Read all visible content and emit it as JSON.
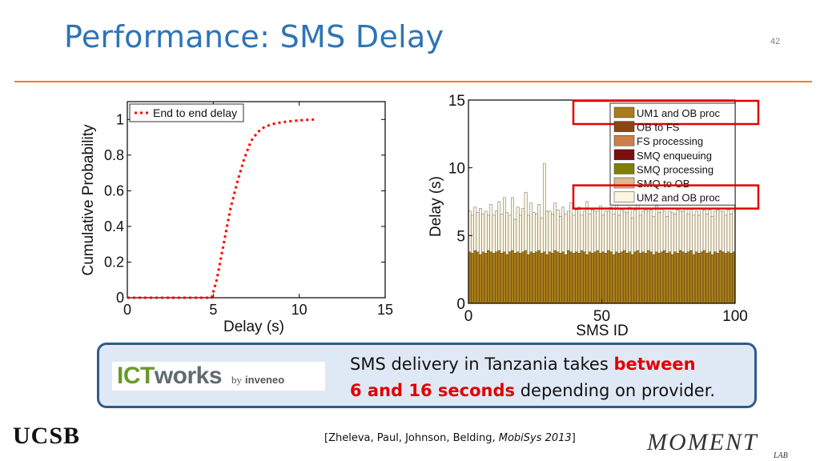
{
  "slide": {
    "title": "Performance: SMS Delay",
    "number": "42"
  },
  "callout": {
    "logo_text_a": "ICT",
    "logo_text_b": "works",
    "logo_by": "by",
    "logo_partner": "inveneo",
    "text_part1": "SMS delivery in Tanzania takes ",
    "text_highlight1": "between",
    "text_highlight2": "6 and 16 seconds",
    "text_part2": " depending on provider."
  },
  "footer": {
    "institution": "UCSB",
    "citation_prefix": "[Zheleva, Paul, Johnson, Belding, ",
    "citation_venue": "MobiSys 2013",
    "citation_suffix": "]",
    "lab_name": "MOMENT",
    "lab_sub": "LAB"
  },
  "colors": {
    "title": "#2e74b5",
    "rule": "#ed7d31",
    "highlight": "#e00000",
    "callout_border": "#2e5b8a",
    "callout_bg": "#dfe9f5",
    "legend_box": "#e00000"
  },
  "chart_data": [
    {
      "type": "line",
      "xlabel": "Delay (s)",
      "ylabel": "Cumulative Probability",
      "xlim": [
        0,
        15
      ],
      "ylim": [
        0,
        1.1
      ],
      "xticks": [
        "0",
        "5",
        "10",
        "15"
      ],
      "yticks": [
        "0",
        "0.2",
        "0.4",
        "0.6",
        "0.8",
        "1"
      ],
      "legend_position": "top-left",
      "series": [
        {
          "name": "End to end delay",
          "color": "#ff0000",
          "style": "dotted",
          "x": [
            0,
            4.9,
            5.2,
            5.6,
            6.0,
            6.4,
            6.8,
            7.2,
            7.6,
            8.0,
            8.5,
            9.0,
            9.5,
            10.0,
            10.5,
            10.9
          ],
          "y": [
            0,
            0,
            0.1,
            0.3,
            0.5,
            0.65,
            0.78,
            0.88,
            0.93,
            0.96,
            0.975,
            0.985,
            0.99,
            0.995,
            0.998,
            1.0
          ]
        }
      ]
    },
    {
      "type": "bar",
      "stacked": true,
      "xlabel": "SMS ID",
      "ylabel": "Delay (s)",
      "xlim": [
        0,
        100
      ],
      "ylim": [
        0,
        15
      ],
      "xticks": [
        "0",
        "50",
        "100"
      ],
      "yticks": [
        "0",
        "5",
        "10",
        "15"
      ],
      "legend_position": "top-right",
      "legend": [
        {
          "name": "UM1 and OB proc",
          "color": "#a87c1a",
          "highlighted": true
        },
        {
          "name": "OB to FS",
          "color": "#8b4513",
          "highlighted": false
        },
        {
          "name": "FS processing",
          "color": "#cd7f4a",
          "highlighted": false
        },
        {
          "name": "SMQ enqueuing",
          "color": "#7a0f0f",
          "highlighted": false
        },
        {
          "name": "SMQ processing",
          "color": "#808000",
          "highlighted": false
        },
        {
          "name": "SMQ to OB",
          "color": "#deb887",
          "highlighted": false
        },
        {
          "name": "UM2 and OB proc",
          "color": "#fdf5e0",
          "highlighted": true
        }
      ],
      "series": [
        {
          "name": "UM1 and OB proc",
          "values": [
            3.8,
            3.7,
            3.9,
            3.8,
            3.6,
            3.8,
            3.7,
            3.9,
            3.8,
            3.7,
            3.8,
            3.9,
            3.7,
            3.8,
            3.6,
            3.8,
            3.9,
            3.7,
            3.8,
            3.7,
            3.8,
            3.9,
            3.6,
            3.8,
            3.7,
            3.8,
            3.9,
            3.7,
            3.8,
            3.6,
            3.8,
            3.7,
            3.9,
            3.8,
            3.7,
            3.8,
            3.6,
            3.9,
            3.8,
            3.7,
            3.8,
            3.7,
            3.9,
            3.8,
            3.6,
            3.8,
            3.7,
            3.8,
            3.9,
            3.7,
            3.8,
            3.7,
            3.9,
            3.8,
            3.6,
            3.8,
            3.7,
            3.8,
            3.9,
            3.7,
            3.8,
            3.6,
            3.8,
            3.9,
            3.7,
            3.8,
            3.7,
            3.9,
            3.8,
            3.6,
            3.8,
            3.7,
            3.8,
            3.9,
            3.7,
            3.8,
            3.6,
            3.8,
            3.7,
            3.9,
            3.8,
            3.7,
            3.8,
            3.9,
            3.6,
            3.8,
            3.7,
            3.8,
            3.9,
            3.7,
            3.8,
            3.6,
            3.8,
            3.7,
            3.9,
            3.8,
            3.7,
            3.8,
            3.7,
            3.8
          ]
        },
        {
          "name": "UM2 and OB proc",
          "values": [
            3.0,
            2.8,
            3.2,
            2.9,
            3.4,
            2.8,
            3.1,
            2.6,
            3.5,
            2.8,
            3.0,
            3.6,
            2.9,
            4.0,
            3.1,
            2.7,
            3.9,
            2.5,
            3.3,
            2.8,
            3.2,
            4.3,
            2.9,
            3.6,
            3.0,
            2.8,
            3.4,
            2.6,
            6.5,
            3.2,
            3.0,
            2.9,
            3.5,
            3.1,
            2.7,
            3.3,
            3.0,
            2.9,
            3.6,
            2.8,
            3.1,
            3.4,
            2.6,
            3.0,
            3.9,
            2.8,
            3.2,
            3.0,
            2.9,
            3.5,
            2.7,
            3.1,
            2.9,
            3.3,
            3.0,
            4.2,
            2.8,
            3.1,
            2.9,
            3.0,
            3.3,
            2.7,
            3.1,
            3.8,
            2.8,
            3.0,
            3.2,
            2.9,
            3.1,
            2.8,
            3.4,
            3.0,
            3.2,
            2.9,
            2.7,
            3.0,
            3.1,
            2.8,
            3.2,
            2.9,
            3.0,
            3.3,
            2.8,
            3.1,
            2.9,
            3.0,
            2.8,
            3.2,
            3.0,
            2.9,
            3.1,
            2.8,
            3.0,
            3.2,
            2.9,
            3.0,
            2.8,
            3.1,
            2.9,
            3.0
          ]
        }
      ]
    }
  ]
}
